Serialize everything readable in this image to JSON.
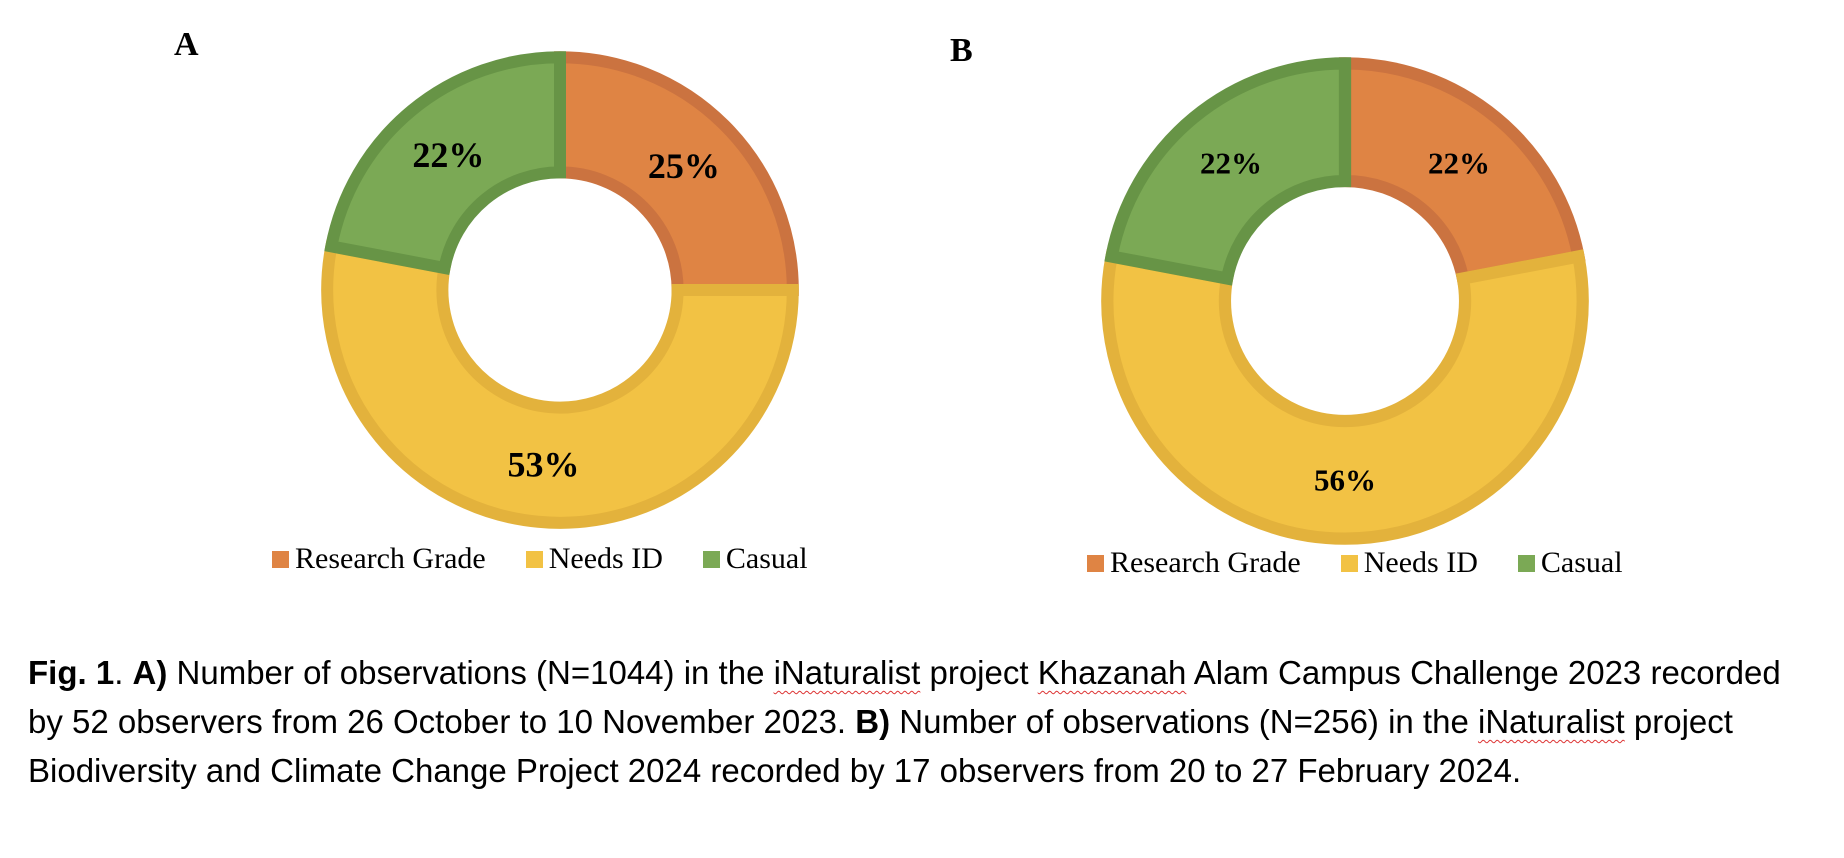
{
  "chart_data": [
    {
      "type": "pie",
      "panel": "A",
      "series": [
        {
          "name": "Research Grade",
          "value": 25,
          "label": "25%"
        },
        {
          "name": "Needs ID",
          "value": 53,
          "label": "53%"
        },
        {
          "name": "Casual",
          "value": 22,
          "label": "22%"
        }
      ],
      "legend": [
        "Research Grade",
        "Needs ID",
        "Casual"
      ]
    },
    {
      "type": "pie",
      "panel": "B",
      "series": [
        {
          "name": "Research Grade",
          "value": 22,
          "label": "22%"
        },
        {
          "name": "Needs ID",
          "value": 56,
          "label": "56%"
        },
        {
          "name": "Casual",
          "value": 22,
          "label": "22%"
        }
      ],
      "legend": [
        "Research Grade",
        "Needs ID",
        "Casual"
      ]
    }
  ],
  "colors": {
    "Research Grade": {
      "fill": "#df8444",
      "stroke": "#cb7340"
    },
    "Needs ID": {
      "fill": "#f2c244",
      "stroke": "#e3b23c"
    },
    "Casual": {
      "fill": "#7ba955",
      "stroke": "#679446"
    }
  },
  "caption": {
    "fig": "Fig. 1",
    "sep1": ". ",
    "a_marker": "A)",
    "part1a": " Number of observations (N=1044) in the ",
    "inat1": "iNaturalist",
    "part1b": " project ",
    "khazanah": "Khazanah",
    "part1c": " Alam Campus Challenge 2023 recorded by 52 observers from 26 October to 10 November 2023. ",
    "b_marker": "B)",
    "part2a": " Number of observations (N=256) in the ",
    "inat2": "iNaturalist",
    "part2b": " project Biodiversity and Climate Change Project 2024 recorded by 17 observers from 20 to 27 February 2024."
  }
}
